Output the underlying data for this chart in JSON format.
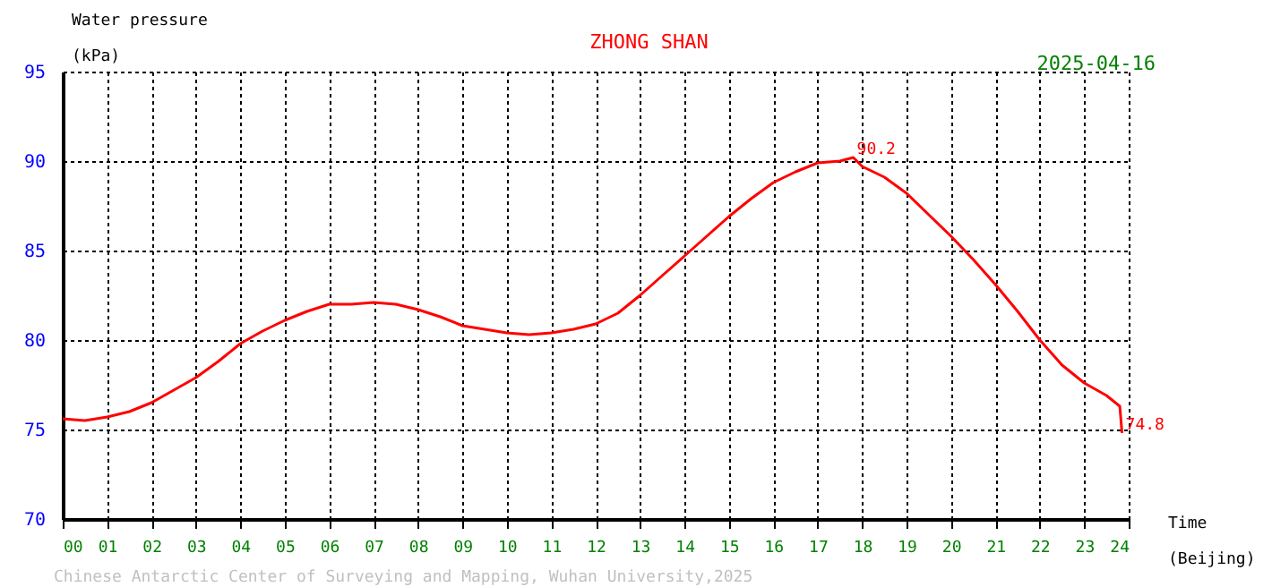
{
  "chart_data": {
    "type": "line",
    "title": "ZHONG SHAN",
    "subtitle": "2025-04-16",
    "ylabel": "Water pressure\n(kPa)",
    "xlabel": "Time\n(Beijing)",
    "x": [
      0,
      0.5,
      1,
      1.5,
      2,
      2.5,
      3,
      3.5,
      4,
      4.5,
      5,
      5.5,
      6,
      6.5,
      7,
      7.5,
      8,
      8.5,
      9,
      9.5,
      10,
      10.5,
      11,
      11.5,
      12,
      12.5,
      13,
      13.5,
      14,
      14.5,
      15,
      15.5,
      16,
      16.5,
      17,
      17.5,
      17.8,
      18,
      18.5,
      19,
      19.5,
      20,
      20.5,
      21,
      21.5,
      22,
      22.5,
      23,
      23.5,
      23.8,
      23.85
    ],
    "series": [
      {
        "color": "#ff0000",
        "values": [
          75.6,
          75.5,
          75.7,
          76.0,
          76.5,
          77.2,
          77.9,
          78.8,
          79.8,
          80.5,
          81.1,
          81.6,
          82.0,
          82.0,
          82.1,
          82.0,
          81.7,
          81.3,
          80.8,
          80.6,
          80.4,
          80.3,
          80.4,
          80.6,
          80.9,
          81.5,
          82.5,
          83.6,
          84.7,
          85.8,
          86.9,
          87.9,
          88.8,
          89.4,
          89.9,
          90.0,
          90.2,
          89.7,
          89.1,
          88.2,
          87.0,
          85.8,
          84.5,
          83.1,
          81.6,
          80.0,
          78.6,
          77.6,
          76.9,
          76.3,
          74.8
        ]
      }
    ],
    "xlim": [
      0,
      24
    ],
    "xticks": [
      {
        "value": 0,
        "label": "00"
      },
      {
        "value": 1,
        "label": "01"
      },
      {
        "value": 2,
        "label": "02"
      },
      {
        "value": 3,
        "label": "03"
      },
      {
        "value": 4,
        "label": "04"
      },
      {
        "value": 5,
        "label": "05"
      },
      {
        "value": 6,
        "label": "06"
      },
      {
        "value": 7,
        "label": "07"
      },
      {
        "value": 8,
        "label": "08"
      },
      {
        "value": 9,
        "label": "09"
      },
      10,
      11,
      12,
      13,
      14,
      15,
      16,
      17,
      18,
      19,
      20,
      21,
      22,
      23,
      24
    ],
    "ylim": [
      70,
      95
    ],
    "yticks": [
      70,
      75,
      80,
      85,
      90,
      95
    ],
    "grid": true,
    "marker": "none",
    "annotations": [
      {
        "text": "90.2",
        "x": 17.8,
        "y": 90.2
      },
      {
        "text": "74.8",
        "x": 23.85,
        "y": 74.8
      },
      "Chinese Antarctic Center of Surveying and Mapping, Wuhan University,2025"
    ]
  }
}
